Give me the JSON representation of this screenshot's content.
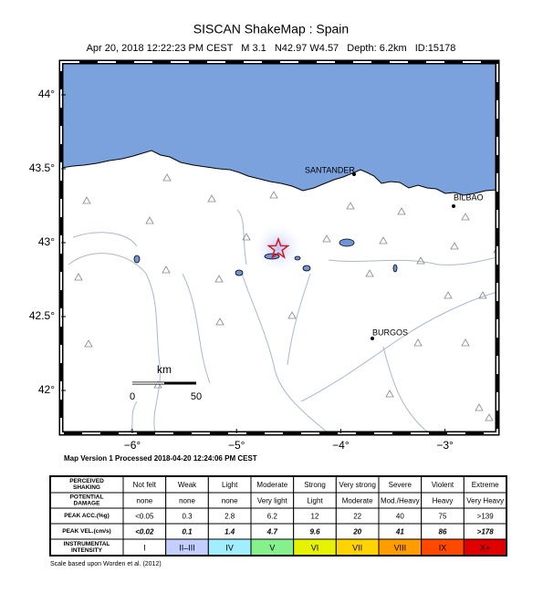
{
  "header": {
    "title": "SISCAN ShakeMap : Spain",
    "subtitle": {
      "date": "Apr 20, 2018 12:22:23 PM CEST",
      "magnitude": "M 3.1",
      "location": "N42.97 W4.57",
      "depth": "Depth: 6.2km",
      "id": "ID:15178"
    }
  },
  "map": {
    "lat_ticks": [
      {
        "value": 44,
        "label": "44°"
      },
      {
        "value": 43.5,
        "label": "43.5°"
      },
      {
        "value": 43,
        "label": "43°"
      },
      {
        "value": 42.5,
        "label": "42.5°"
      },
      {
        "value": 42,
        "label": "42°"
      }
    ],
    "lon_ticks": [
      {
        "value": -6,
        "label": "−6°"
      },
      {
        "value": -5,
        "label": "−5°"
      },
      {
        "value": -4,
        "label": "−4°"
      },
      {
        "value": -3,
        "label": "−3°"
      }
    ],
    "cities": [
      "SANTANDER",
      "BILBAO",
      "BURGOS"
    ],
    "scale_bar": {
      "unit": "km",
      "start": "0",
      "end": "50"
    }
  },
  "footer": "Map Version 1 Processed 2018-04-20 12:24:06 PM CEST",
  "legend": {
    "rows": [
      [
        [
          "PERCEIVED",
          "SHAKING"
        ],
        "Not felt",
        "Weak",
        "Light",
        "Moderate",
        "Strong",
        "Very strong",
        "Severe",
        "Violent",
        "Extreme"
      ],
      [
        [
          "POTENTIAL",
          "DAMAGE"
        ],
        "none",
        "none",
        "none",
        "Very light",
        "Light",
        "Moderate",
        "Mod./Heavy",
        "Heavy",
        "Very Heavy"
      ],
      [
        [
          "PEAK ACC.(%g)"
        ],
        "<0.05",
        "0.3",
        "2.8",
        "6.2",
        "12",
        "22",
        "40",
        "75",
        ">139"
      ],
      [
        [
          "PEAK VEL.(cm/s)"
        ],
        "<0.02",
        "0.1",
        "1.4",
        "4.7",
        "9.6",
        "20",
        "41",
        "86",
        ">178"
      ],
      [
        [
          "INSTRUMENTAL",
          "INTENSITY"
        ],
        "I",
        "II–III",
        "IV",
        "V",
        "VI",
        "VII",
        "VIII",
        "IX",
        "X+"
      ]
    ]
  },
  "note": "Scale based upon Worden et al. (2012)"
}
